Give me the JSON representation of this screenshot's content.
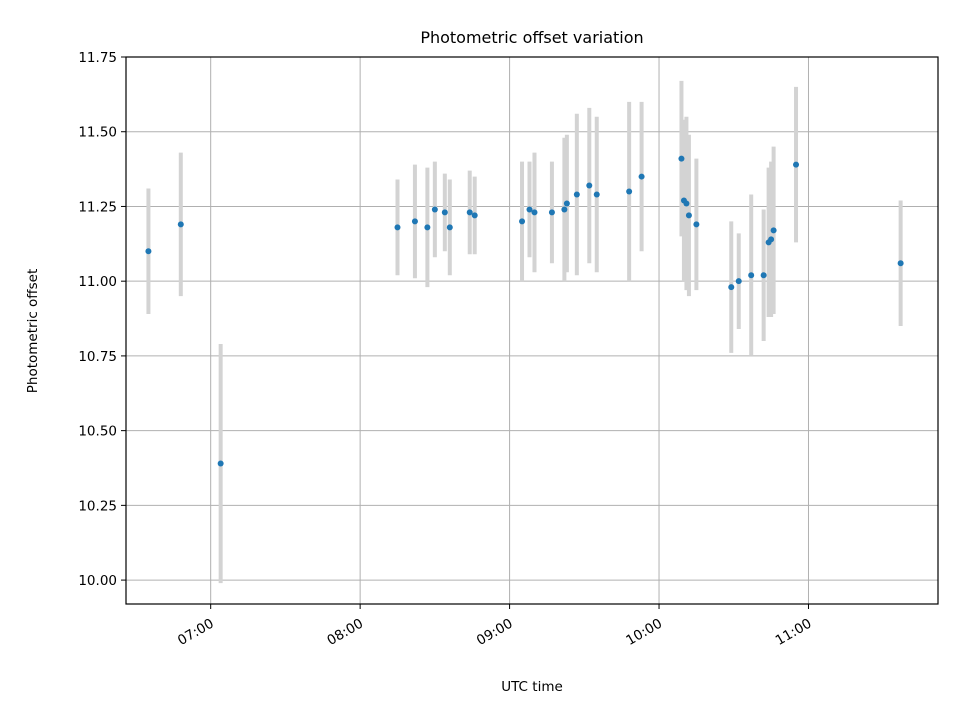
{
  "chart_data": {
    "type": "scatter",
    "title": "Photometric offset variation",
    "xlabel": "UTC time",
    "ylabel": "Photometric offset",
    "xlim": [
      "06:26",
      "11:52"
    ],
    "ylim": [
      9.92,
      11.75
    ],
    "x_ticks": [
      "07:00",
      "08:00",
      "09:00",
      "10:00",
      "11:00"
    ],
    "y_ticks": [
      "10.00",
      "10.25",
      "10.50",
      "10.75",
      "11.00",
      "11.25",
      "11.50",
      "11.75"
    ],
    "grid": true,
    "colors": {
      "point": "#1f77b4",
      "errorbar": "#d3d3d3",
      "grid": "#b0b0b0"
    },
    "points": [
      {
        "x": "06:35",
        "y": 11.1,
        "err": 0.21
      },
      {
        "x": "06:48",
        "y": 11.19,
        "err": 0.24
      },
      {
        "x": "07:04",
        "y": 10.39,
        "err": 0.4
      },
      {
        "x": "08:15",
        "y": 11.18,
        "err": 0.16
      },
      {
        "x": "08:22",
        "y": 11.2,
        "err": 0.19
      },
      {
        "x": "08:27",
        "y": 11.18,
        "err": 0.2
      },
      {
        "x": "08:30",
        "y": 11.24,
        "err": 0.16
      },
      {
        "x": "08:34",
        "y": 11.23,
        "err": 0.13
      },
      {
        "x": "08:36",
        "y": 11.18,
        "err": 0.16
      },
      {
        "x": "08:44",
        "y": 11.23,
        "err": 0.14
      },
      {
        "x": "08:46",
        "y": 11.22,
        "err": 0.13
      },
      {
        "x": "09:05",
        "y": 11.2,
        "err": 0.2
      },
      {
        "x": "09:08",
        "y": 11.24,
        "err": 0.16
      },
      {
        "x": "09:10",
        "y": 11.23,
        "err": 0.2
      },
      {
        "x": "09:17",
        "y": 11.23,
        "err": 0.17
      },
      {
        "x": "09:22",
        "y": 11.24,
        "err": 0.24
      },
      {
        "x": "09:23",
        "y": 11.26,
        "err": 0.23
      },
      {
        "x": "09:27",
        "y": 11.29,
        "err": 0.27
      },
      {
        "x": "09:32",
        "y": 11.32,
        "err": 0.26
      },
      {
        "x": "09:35",
        "y": 11.29,
        "err": 0.26
      },
      {
        "x": "09:48",
        "y": 11.3,
        "err": 0.3
      },
      {
        "x": "09:53",
        "y": 11.35,
        "err": 0.25
      },
      {
        "x": "10:09",
        "y": 11.41,
        "err": 0.26
      },
      {
        "x": "10:10",
        "y": 11.27,
        "err": 0.27
      },
      {
        "x": "10:11",
        "y": 11.26,
        "err": 0.29
      },
      {
        "x": "10:12",
        "y": 11.22,
        "err": 0.27
      },
      {
        "x": "10:15",
        "y": 11.19,
        "err": 0.22
      },
      {
        "x": "10:29",
        "y": 10.98,
        "err": 0.22
      },
      {
        "x": "10:32",
        "y": 11.0,
        "err": 0.16
      },
      {
        "x": "10:37",
        "y": 11.02,
        "err": 0.27
      },
      {
        "x": "10:42",
        "y": 11.02,
        "err": 0.22
      },
      {
        "x": "10:44",
        "y": 11.13,
        "err": 0.25
      },
      {
        "x": "10:45",
        "y": 11.14,
        "err": 0.26
      },
      {
        "x": "10:46",
        "y": 11.17,
        "err": 0.28
      },
      {
        "x": "10:55",
        "y": 11.39,
        "err": 0.26
      },
      {
        "x": "11:37",
        "y": 11.06,
        "err": 0.21
      }
    ]
  }
}
